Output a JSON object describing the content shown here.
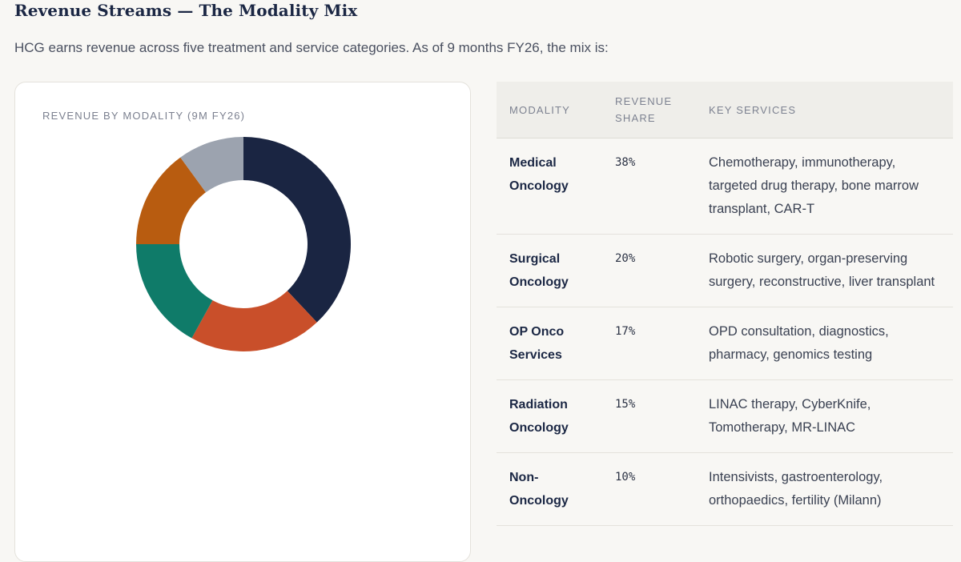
{
  "header": {
    "title": "Revenue Streams — The Modality Mix",
    "intro": "HCG earns revenue across five treatment and service categories. As of 9 months FY26, the mix is:"
  },
  "chart_data": {
    "type": "pie",
    "title": "REVENUE BY MODALITY (9M FY26)",
    "categories": [
      "Medical Oncology",
      "Surgical Oncology",
      "OP Onco Services",
      "Radiation Oncology",
      "Non-Oncology"
    ],
    "values": [
      38,
      20,
      17,
      15,
      10
    ],
    "colors": [
      "#1a2542",
      "#c94f2a",
      "#0f7b69",
      "#b85c10",
      "#9ca3af"
    ],
    "donut": true,
    "legend": "none"
  },
  "table": {
    "headers": [
      "MODALITY",
      "REVENUE SHARE",
      "KEY SERVICES"
    ],
    "rows": [
      {
        "modality": "Medical Oncology",
        "share": "38%",
        "services": "Chemotherapy, immunotherapy, targeted drug therapy, bone marrow transplant, CAR-T"
      },
      {
        "modality": "Surgical Oncology",
        "share": "20%",
        "services": "Robotic surgery, organ-preserving surgery, reconstructive, liver transplant"
      },
      {
        "modality": "OP Onco Services",
        "share": "17%",
        "services": "OPD consultation, diagnostics, pharmacy, genomics testing"
      },
      {
        "modality": "Radiation Oncology",
        "share": "15%",
        "services": "LINAC therapy, CyberKnife, Tomotherapy, MR-LINAC"
      },
      {
        "modality": "Non-Oncology",
        "share": "10%",
        "services": "Intensivists, gastroenterology, orthopaedics, fertility (Milann)"
      }
    ]
  }
}
